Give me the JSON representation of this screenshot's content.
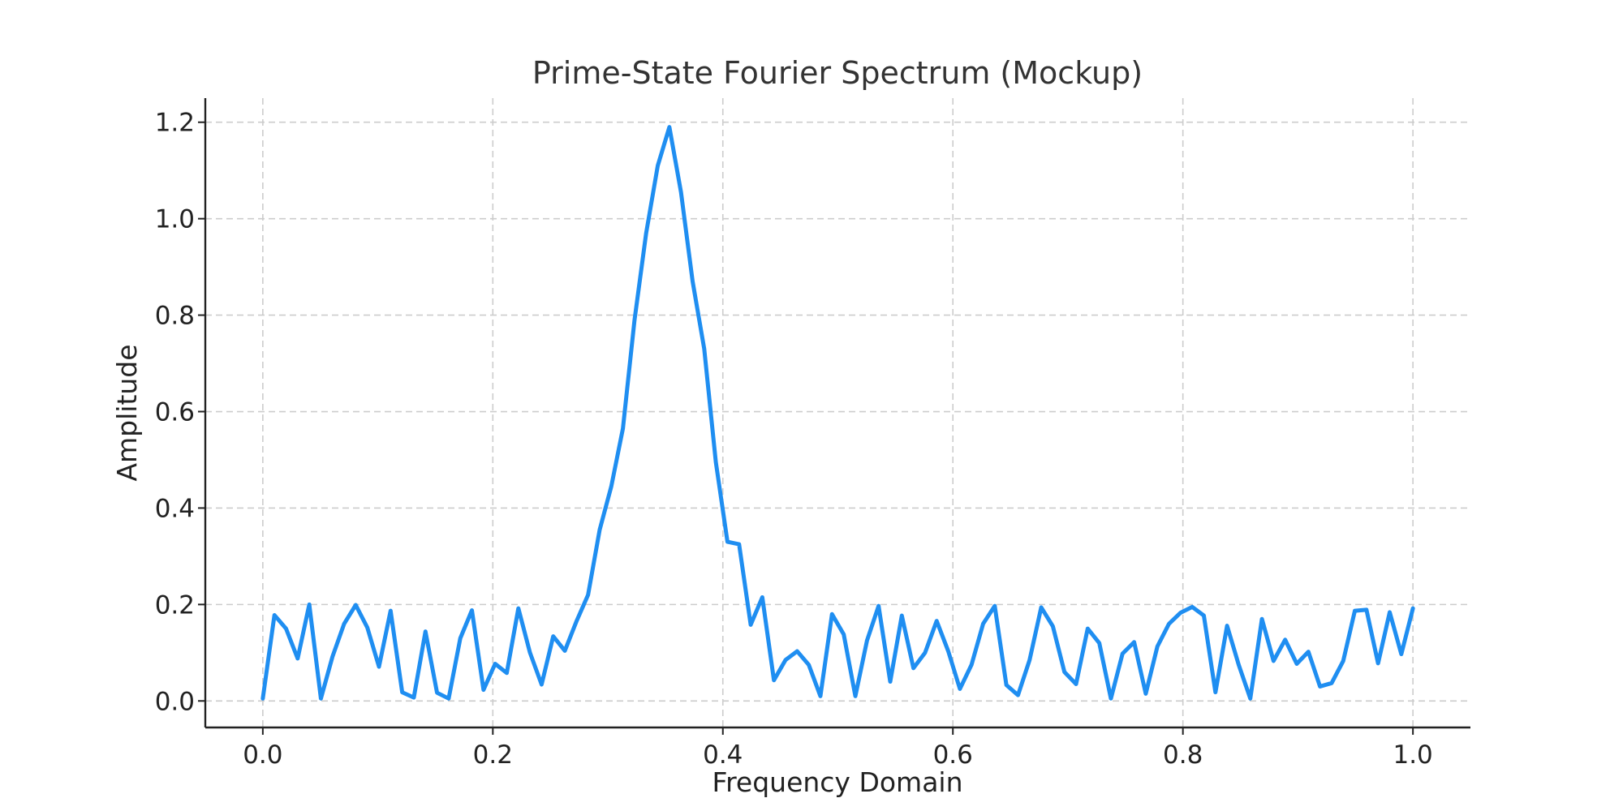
{
  "chart_data": {
    "type": "line",
    "title": "Prime-State Fourier Spectrum (Mockup)",
    "xlabel": "Frequency Domain",
    "ylabel": "Amplitude",
    "xlim": [
      -0.05,
      1.05
    ],
    "ylim": [
      -0.055,
      1.25
    ],
    "xticks": [
      0.0,
      0.2,
      0.4,
      0.6,
      0.8,
      1.0
    ],
    "xtick_labels": [
      "0.0",
      "0.2",
      "0.4",
      "0.6",
      "0.8",
      "1.0"
    ],
    "yticks": [
      0.0,
      0.2,
      0.4,
      0.6,
      0.8,
      1.0,
      1.2
    ],
    "ytick_labels": [
      "0.0",
      "0.2",
      "0.4",
      "0.6",
      "0.8",
      "1.0",
      "1.2"
    ],
    "grid": true,
    "line_color": "#1f8ef1",
    "series": [
      {
        "x": [
          0.0,
          0.0101,
          0.0202,
          0.0303,
          0.0404,
          0.0505,
          0.0606,
          0.0707,
          0.0808,
          0.0909,
          0.101,
          0.1111,
          0.1212,
          0.1313,
          0.1414,
          0.1515,
          0.1616,
          0.1717,
          0.1818,
          0.1919,
          0.202,
          0.2121,
          0.2222,
          0.2323,
          0.2424,
          0.2525,
          0.2626,
          0.2727,
          0.2828,
          0.2929,
          0.303,
          0.3131,
          0.3232,
          0.3333,
          0.3434,
          0.3535,
          0.3636,
          0.3737,
          0.3838,
          0.3939,
          0.404,
          0.4141,
          0.4242,
          0.4343,
          0.4444,
          0.4545,
          0.4646,
          0.4747,
          0.4848,
          0.4949,
          0.5051,
          0.5152,
          0.5253,
          0.5354,
          0.5455,
          0.5556,
          0.5657,
          0.5758,
          0.5859,
          0.596,
          0.6061,
          0.6162,
          0.6263,
          0.6364,
          0.6465,
          0.6566,
          0.6667,
          0.6768,
          0.6869,
          0.697,
          0.7071,
          0.7172,
          0.7273,
          0.7374,
          0.7475,
          0.7576,
          0.7677,
          0.7778,
          0.7879,
          0.798,
          0.8081,
          0.8182,
          0.8283,
          0.8384,
          0.8485,
          0.8586,
          0.8687,
          0.8788,
          0.8889,
          0.899,
          0.9091,
          0.9192,
          0.9293,
          0.9394,
          0.9495,
          0.9596,
          0.9697,
          0.9798,
          0.9899,
          1.0
        ],
        "y": [
          0.005,
          0.178,
          0.15,
          0.088,
          0.2,
          0.005,
          0.092,
          0.16,
          0.199,
          0.152,
          0.071,
          0.187,
          0.018,
          0.007,
          0.144,
          0.017,
          0.005,
          0.13,
          0.188,
          0.023,
          0.077,
          0.058,
          0.192,
          0.1,
          0.034,
          0.134,
          0.104,
          0.165,
          0.22,
          0.355,
          0.445,
          0.565,
          0.79,
          0.97,
          1.11,
          1.19,
          1.055,
          0.87,
          0.73,
          0.495,
          0.33,
          0.325,
          0.158,
          0.215,
          0.043,
          0.085,
          0.103,
          0.075,
          0.01,
          0.18,
          0.138,
          0.01,
          0.125,
          0.197,
          0.04,
          0.177,
          0.068,
          0.1,
          0.166,
          0.103,
          0.025,
          0.075,
          0.16,
          0.197,
          0.033,
          0.012,
          0.085,
          0.194,
          0.155,
          0.06,
          0.035,
          0.15,
          0.12,
          0.005,
          0.098,
          0.122,
          0.015,
          0.113,
          0.16,
          0.183,
          0.195,
          0.177,
          0.018,
          0.156,
          0.075,
          0.005,
          0.17,
          0.083,
          0.127,
          0.077,
          0.102,
          0.03,
          0.037,
          0.083,
          0.187,
          0.189,
          0.078,
          0.184,
          0.097,
          0.192
        ]
      }
    ]
  }
}
